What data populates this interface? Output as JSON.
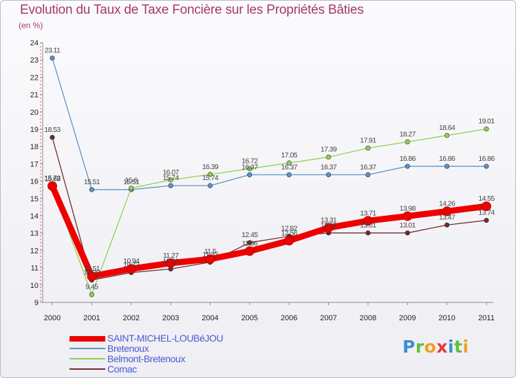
{
  "chart_data": {
    "type": "line",
    "title": "Evolution du Taux de Taxe Foncière sur les Propriétés Bâties",
    "unit_label": "(en %)",
    "xlabel": "",
    "ylabel": "",
    "ylim": [
      9,
      24
    ],
    "y_ticks": [
      "9",
      "10",
      "11",
      "12",
      "13",
      "14",
      "15",
      "16",
      "17",
      "18",
      "19",
      "20",
      "21",
      "22",
      "23",
      "24"
    ],
    "categories": [
      "2000",
      "2001",
      "2002",
      "2003",
      "2004",
      "2005",
      "2006",
      "2007",
      "2008",
      "2009",
      "2010",
      "2011"
    ],
    "series": [
      {
        "name": "Bretenoux",
        "color": "#5b93c8",
        "values": [
          23.11,
          15.51,
          15.51,
          15.74,
          15.74,
          16.37,
          16.37,
          16.37,
          16.37,
          16.86,
          16.86,
          16.86
        ],
        "labels": [
          "23.11",
          "15.51",
          "15.51",
          "15.74",
          "15.74",
          "16.37",
          "16.37",
          "16.37",
          "16.37",
          "16.86",
          "16.86",
          "16.86"
        ]
      },
      {
        "name": "Belmont-Bretenoux",
        "color": "#8fd152",
        "values": [
          15.69,
          9.45,
          15.6,
          16.07,
          16.39,
          16.72,
          17.05,
          17.39,
          17.91,
          18.27,
          18.64,
          19.01
        ],
        "labels": [
          "15.69",
          "9.45",
          "15.6",
          "16.07",
          "16.39",
          "16.72",
          "17.05",
          "17.39",
          "17.91",
          "18.27",
          "18.64",
          "19.01"
        ]
      },
      {
        "name": "Cornac",
        "color": "#6e2a2e",
        "values": [
          18.53,
          10.29,
          10.72,
          10.93,
          11.32,
          12.45,
          12.82,
          13.01,
          13.01,
          13.01,
          13.47,
          13.74
        ],
        "labels": [
          "18.53",
          "10.29",
          "10.72",
          "10.93",
          "11.32",
          "12.45",
          "12.82",
          "13.01",
          "13.01",
          "13.01",
          "13.47",
          "13.74"
        ]
      },
      {
        "name": "SAINT-MICHEL-LOUBéJOU",
        "color": "#ee0000",
        "values": [
          15.72,
          10.51,
          10.94,
          11.27,
          11.5,
          11.96,
          12.56,
          13.31,
          13.71,
          13.98,
          14.26,
          14.55
        ],
        "labels": [
          "15.72",
          "10.51",
          "10.94",
          "11.27",
          "11.5",
          "11.96",
          "12.56",
          "13.31",
          "13.71",
          "13.98",
          "14.26",
          "14.55"
        ]
      }
    ],
    "legend": [
      "SAINT-MICHEL-LOUBéJOU",
      "Bretenoux",
      "Belmont-Bretenoux",
      "Cornac"
    ],
    "legend_position": "bottom-left"
  },
  "logo": {
    "letters": [
      "P",
      "r",
      "o",
      "x",
      "i",
      "t",
      "i"
    ],
    "colors": [
      "#3a8fd0",
      "#5fbf3a",
      "#f0a020",
      "#e03a3a",
      "#3a8fd0",
      "#5fbf3a",
      "#f0a020"
    ]
  }
}
